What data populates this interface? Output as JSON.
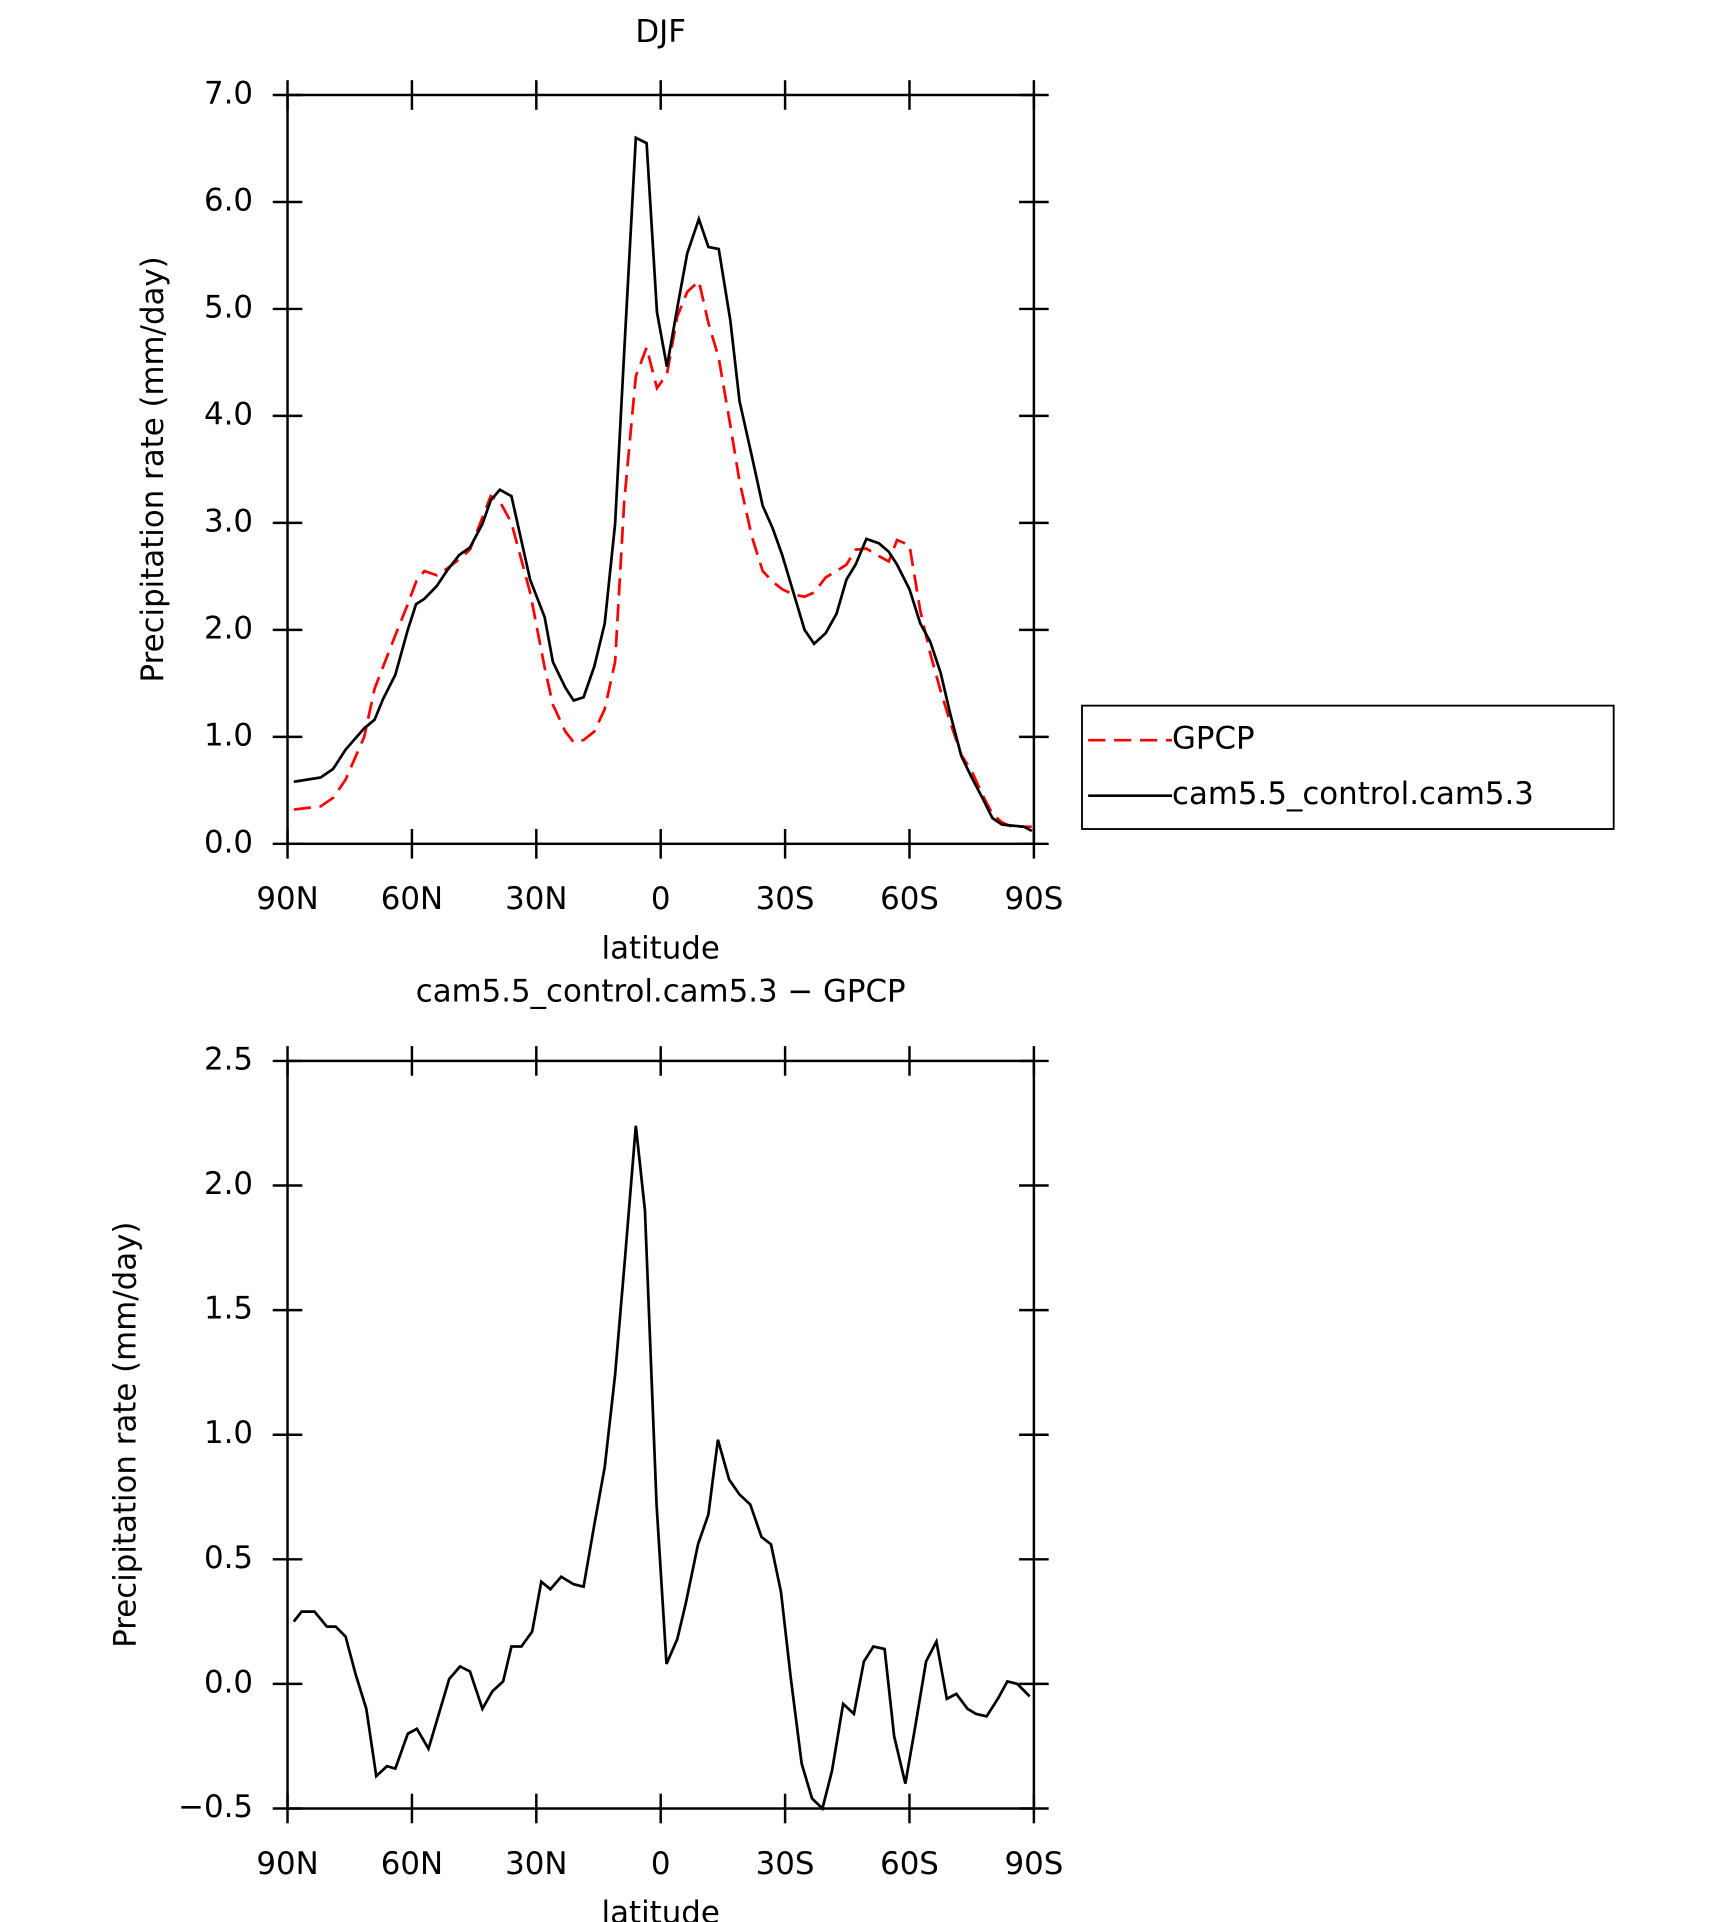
{
  "chart_data": [
    {
      "type": "line",
      "title": "DJF",
      "x_label": "latitude",
      "y_label": "Precipitation rate (mm/day)",
      "x": [
        88.5,
        82,
        79,
        76,
        71.5,
        69,
        67,
        64,
        61,
        59,
        57,
        54,
        51.6,
        48.6,
        46,
        43,
        41,
        38.8,
        36,
        31.5,
        28,
        26,
        23,
        21,
        18.6,
        16,
        13.5,
        11,
        8.8,
        6,
        3.4,
        0.9,
        -1.5,
        -4,
        -6.4,
        -9.2,
        -11.5,
        -14,
        -16.8,
        -19,
        -22,
        -24.6,
        -27,
        -29.3,
        -32,
        -34.7,
        -37,
        -39.8,
        -42.4,
        -44.8,
        -47,
        -49.6,
        -52.6,
        -55,
        -57,
        -60,
        -62.6,
        -65,
        -67.5,
        -69.8,
        -72.5,
        -75,
        -77.7,
        -80,
        -82.3,
        -84.7,
        -87.6,
        -89.5
      ],
      "series": [
        {
          "name": "GPCP",
          "color": "#ff0000",
          "dashed": true,
          "values": [
            0.32,
            0.35,
            0.43,
            0.6,
            1.0,
            1.45,
            1.65,
            1.95,
            2.24,
            2.45,
            2.55,
            2.51,
            2.57,
            2.66,
            2.75,
            3.05,
            3.25,
            3.2,
            3.0,
            2.35,
            1.65,
            1.3,
            1.05,
            0.95,
            0.97,
            1.05,
            1.26,
            1.7,
            3.2,
            4.37,
            4.64,
            4.26,
            4.39,
            4.93,
            5.16,
            5.26,
            4.87,
            4.54,
            3.91,
            3.39,
            2.87,
            2.55,
            2.45,
            2.38,
            2.33,
            2.31,
            2.35,
            2.49,
            2.55,
            2.61,
            2.75,
            2.76,
            2.69,
            2.64,
            2.84,
            2.79,
            2.18,
            1.78,
            1.43,
            1.14,
            0.83,
            0.68,
            0.45,
            0.28,
            0.2,
            0.16,
            0.16,
            0.16
          ]
        },
        {
          "name": "cam5.5_control.cam5.3",
          "color": "#000000",
          "dashed": false,
          "values": [
            0.58,
            0.62,
            0.7,
            0.88,
            1.08,
            1.16,
            1.35,
            1.58,
            2.0,
            2.24,
            2.29,
            2.41,
            2.55,
            2.7,
            2.77,
            2.99,
            3.21,
            3.31,
            3.25,
            2.47,
            2.12,
            1.7,
            1.46,
            1.34,
            1.37,
            1.66,
            2.06,
            2.99,
            4.6,
            6.6,
            6.55,
            4.97,
            4.46,
            5.01,
            5.52,
            5.84,
            5.58,
            5.56,
            4.89,
            4.14,
            3.62,
            3.16,
            2.95,
            2.7,
            2.35,
            2.0,
            1.87,
            1.97,
            2.15,
            2.47,
            2.61,
            2.85,
            2.81,
            2.73,
            2.61,
            2.38,
            2.06,
            1.89,
            1.6,
            1.22,
            0.82,
            0.62,
            0.42,
            0.24,
            0.18,
            0.17,
            0.16,
            0.12
          ]
        }
      ],
      "xlim": [
        90,
        -90
      ],
      "xticks": [
        {
          "value": 90,
          "label": "90N"
        },
        {
          "value": 60,
          "label": "60N"
        },
        {
          "value": 30,
          "label": "30N"
        },
        0,
        {
          "value": -30,
          "label": "30S"
        },
        {
          "value": -60,
          "label": "60S"
        },
        {
          "value": -90,
          "label": "90S"
        }
      ],
      "ylim": [
        0,
        7
      ],
      "yticks": [
        {
          "value": 0,
          "label": "0.0"
        },
        {
          "value": 1,
          "label": "1.0"
        },
        {
          "value": 2,
          "label": "2.0"
        },
        {
          "value": 3,
          "label": "3.0"
        },
        {
          "value": 4,
          "label": "4.0"
        },
        {
          "value": 5,
          "label": "5.0"
        },
        {
          "value": 6,
          "label": "6.0"
        },
        {
          "value": 7,
          "label": "7.0"
        }
      ],
      "legend": "outside-right"
    },
    {
      "type": "line",
      "title": "cam5.5_control.cam5.3 − GPCP",
      "x_label": "latitude",
      "y_label": "Precipitation rate (mm/day)",
      "x": [
        88.5,
        86.6,
        83.5,
        80.5,
        78.4,
        76,
        73.6,
        71,
        68.6,
        66,
        64,
        61,
        58.8,
        56,
        53.5,
        51,
        48.4,
        46,
        43,
        40.6,
        38,
        36,
        33.6,
        31,
        28.8,
        26.6,
        24,
        21,
        18.6,
        16,
        13.5,
        11,
        8.6,
        6,
        3.8,
        1,
        -1.4,
        -4,
        -6,
        -9,
        -11.5,
        -13.8,
        -16.5,
        -19,
        -21.6,
        -24.3,
        -26.6,
        -29,
        -31.4,
        -34,
        -36.5,
        -39,
        -41.3,
        -44,
        -46.6,
        -49,
        -51.3,
        -54,
        -56.3,
        -59,
        -61.4,
        -64,
        -66.5,
        -69,
        -71.3,
        -74,
        -76,
        -78.6,
        -81.3,
        -83.6,
        -86,
        -89
      ],
      "series": [
        {
          "color": "#000000",
          "dashed": false,
          "values": [
            0.25,
            0.29,
            0.29,
            0.23,
            0.23,
            0.19,
            0.04,
            -0.1,
            -0.37,
            -0.33,
            -0.34,
            -0.2,
            -0.18,
            -0.26,
            -0.12,
            0.02,
            0.07,
            0.05,
            -0.1,
            -0.03,
            0.01,
            0.15,
            0.15,
            0.21,
            0.41,
            0.38,
            0.43,
            0.4,
            0.39,
            0.64,
            0.87,
            1.24,
            1.71,
            2.24,
            1.9,
            0.72,
            0.08,
            0.18,
            0.32,
            0.56,
            0.68,
            0.98,
            0.82,
            0.76,
            0.72,
            0.59,
            0.56,
            0.37,
            0.02,
            -0.32,
            -0.46,
            -0.5,
            -0.35,
            -0.08,
            -0.12,
            0.09,
            0.15,
            0.14,
            -0.21,
            -0.4,
            -0.17,
            0.09,
            0.17,
            -0.06,
            -0.04,
            -0.1,
            -0.12,
            -0.13,
            -0.06,
            0.01,
            0.0,
            -0.05
          ]
        }
      ],
      "xlim": [
        90,
        -90
      ],
      "xticks": [
        {
          "value": 90,
          "label": "90N"
        },
        {
          "value": 60,
          "label": "60N"
        },
        {
          "value": 30,
          "label": "30N"
        },
        0,
        {
          "value": -30,
          "label": "30S"
        },
        {
          "value": -60,
          "label": "60S"
        },
        {
          "value": -90,
          "label": "90S"
        }
      ],
      "ylim": [
        -0.5,
        2.5
      ],
      "yticks": [
        {
          "value": -0.5,
          "label": "−0.5"
        },
        {
          "value": 0,
          "label": "0.0"
        },
        {
          "value": 0.5,
          "label": "0.5"
        },
        {
          "value": 1,
          "label": "1.0"
        },
        {
          "value": 1.5,
          "label": "1.5"
        },
        {
          "value": 2,
          "label": "2.0"
        },
        {
          "value": 2.5,
          "label": "2.5"
        }
      ]
    }
  ]
}
